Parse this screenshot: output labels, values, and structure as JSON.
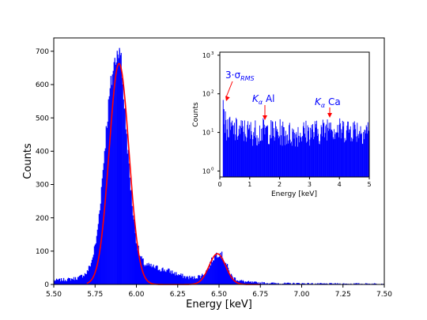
{
  "chart_data": [
    {
      "type": "bar",
      "role": "main",
      "xlabel": "Energy [keV]",
      "ylabel": "Counts",
      "xlim": [
        5.5,
        7.5
      ],
      "ylim": [
        0,
        740
      ],
      "x_ticks": [
        5.5,
        5.75,
        6.0,
        6.25,
        6.5,
        6.75,
        7.0,
        7.25,
        7.5
      ],
      "x_tick_labels": [
        "5.50",
        "5.75",
        "6.00",
        "6.25",
        "6.50",
        "6.75",
        "7.00",
        "7.25",
        "7.50"
      ],
      "y_ticks": [
        0,
        100,
        200,
        300,
        400,
        500,
        600,
        700
      ],
      "y_tick_labels": [
        "0",
        "100",
        "200",
        "300",
        "400",
        "500",
        "600",
        "700"
      ],
      "grid": false,
      "series": [
        {
          "kind": "histogram",
          "color": "#0000ff",
          "x": [
            5.5,
            5.55,
            5.6,
            5.65,
            5.7,
            5.73,
            5.76,
            5.78,
            5.8,
            5.82,
            5.84,
            5.86,
            5.88,
            5.89,
            5.9,
            5.91,
            5.92,
            5.94,
            5.96,
            5.98,
            6.0,
            6.02,
            6.05,
            6.08,
            6.12,
            6.16,
            6.2,
            6.25,
            6.3,
            6.35,
            6.4,
            6.43,
            6.46,
            6.48,
            6.5,
            6.52,
            6.54,
            6.56,
            6.58,
            6.62,
            6.66,
            6.7,
            6.75,
            6.8,
            6.9,
            7.0,
            7.1,
            7.2,
            7.3,
            7.4,
            7.5
          ],
          "values": [
            12,
            14,
            16,
            20,
            35,
            70,
            140,
            240,
            360,
            480,
            580,
            650,
            690,
            700,
            680,
            640,
            580,
            450,
            320,
            210,
            130,
            85,
            60,
            55,
            50,
            45,
            40,
            30,
            22,
            20,
            28,
            45,
            75,
            90,
            95,
            85,
            65,
            40,
            22,
            12,
            8,
            6,
            5,
            4,
            3,
            3,
            2,
            2,
            2,
            2,
            2
          ],
          "peak_counts": [
            710,
            95
          ]
        },
        {
          "kind": "fit-line",
          "color": "#ff0000",
          "model": "gaussian",
          "components": [
            {
              "center": 5.895,
              "amplitude": 663,
              "sigma": 0.06
            },
            {
              "center": 6.49,
              "amplitude": 92,
              "sigma": 0.05
            }
          ]
        }
      ]
    },
    {
      "type": "bar",
      "role": "inset",
      "xlabel": "Energy [keV]",
      "ylabel": "Counts",
      "xlim": [
        0,
        5
      ],
      "ylim": [
        0.7,
        1200
      ],
      "yscale": "log",
      "x_ticks": [
        0,
        1,
        2,
        3,
        4,
        5
      ],
      "x_tick_labels": [
        "0",
        "1",
        "2",
        "3",
        "4",
        "5"
      ],
      "y_ticks": [
        1,
        10,
        100,
        1000
      ],
      "y_tick_labels": [
        "10",
        "10",
        "10",
        "10"
      ],
      "y_tick_exponents": [
        "0",
        "1",
        "2",
        "3"
      ],
      "series": [
        {
          "kind": "histogram",
          "color": "#0000ff",
          "x": [
            0.1,
            0.15,
            0.2,
            0.25,
            0.3,
            0.4,
            0.5,
            0.75,
            1.0,
            1.25,
            1.5,
            1.75,
            2.0,
            2.25,
            2.5,
            2.75,
            3.0,
            3.25,
            3.5,
            3.7,
            3.75,
            4.0,
            4.25,
            4.5,
            4.75,
            5.0
          ],
          "values": [
            40,
            20,
            14,
            13,
            12,
            12,
            11,
            11,
            10,
            10,
            11,
            10,
            10,
            9,
            9,
            10,
            10,
            10,
            11,
            18,
            13,
            11,
            12,
            12,
            11,
            11
          ]
        }
      ],
      "annotations": [
        {
          "text": "3·σ",
          "subscript": "RMS",
          "arrow_to_x": 0.2,
          "arrow_to_y": 40,
          "color": "#0000ff",
          "arrow_color": "#ff0000"
        },
        {
          "text": "K",
          "subscript": "α",
          "suffix": " Al",
          "arrow_to_x": 1.49,
          "arrow_to_y": 14,
          "color": "#0000ff",
          "arrow_color": "#ff0000"
        },
        {
          "text": "K",
          "subscript": "α",
          "suffix": " Ca",
          "arrow_to_x": 3.69,
          "arrow_to_y": 18,
          "color": "#0000ff",
          "arrow_color": "#ff0000"
        }
      ]
    }
  ]
}
